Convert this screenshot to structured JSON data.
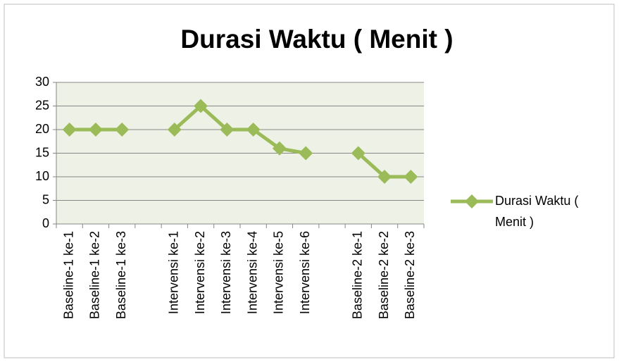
{
  "chart_data": {
    "type": "line",
    "title": "Durasi Waktu ( Menit )",
    "categories": [
      "Baseline-1 ke-1",
      "Baseline-1 ke-2",
      "Baseline-1 ke-3",
      null,
      "Intervensi ke-1",
      "Intervensi ke-2",
      "Intervensi ke-3",
      "Intervensi ke-4",
      "Intervensi ke-5",
      "Intervensi ke-6",
      null,
      "Baseline-2 ke-1",
      "Baseline-2 ke-2",
      "Baseline-2 ke-3"
    ],
    "series": [
      {
        "name": "Durasi Waktu ( Menit )",
        "color": "#9bbb59",
        "values": [
          20,
          20,
          20,
          null,
          20,
          25,
          20,
          20,
          16,
          15,
          null,
          15,
          10,
          10
        ]
      }
    ],
    "ylim": [
      0,
      30
    ],
    "yticks": [
      0,
      5,
      10,
      15,
      20,
      25,
      30
    ],
    "grid": true,
    "legend": "right"
  }
}
